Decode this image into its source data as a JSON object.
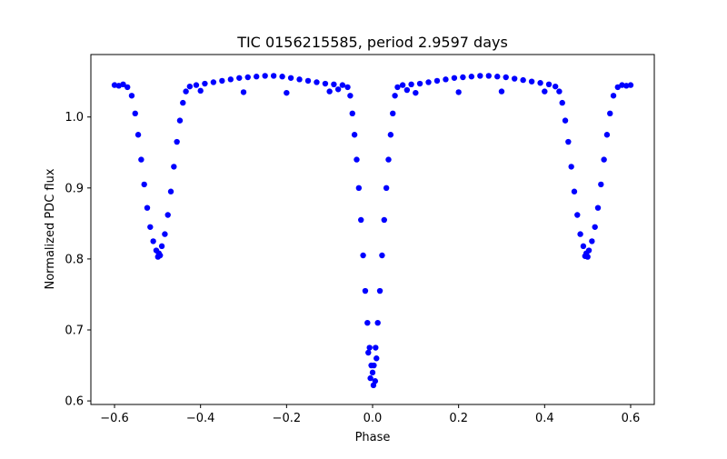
{
  "chart_data": {
    "type": "scatter",
    "title": "TIC 0156215585, period 2.9597 days",
    "xlabel": "Phase",
    "ylabel": "Normalized PDC flux",
    "xlim": [
      -0.655,
      0.655
    ],
    "ylim": [
      0.595,
      1.088
    ],
    "xticks": [
      -0.6,
      -0.4,
      -0.2,
      0.0,
      0.2,
      0.4,
      0.6
    ],
    "xtick_labels": [
      "−0.6",
      "−0.4",
      "−0.2",
      "0.0",
      "0.2",
      "0.4",
      "0.6"
    ],
    "yticks": [
      0.6,
      0.7,
      0.8,
      0.9,
      1.0
    ],
    "ytick_labels": [
      "0.6",
      "0.7",
      "0.8",
      "0.9",
      "1.0"
    ],
    "grid": false,
    "marker_color": "#0000ff",
    "series": [
      {
        "points": [
          [
            -0.6,
            1.045
          ],
          [
            -0.59,
            1.044
          ],
          [
            -0.58,
            1.046
          ],
          [
            -0.57,
            1.042
          ],
          [
            -0.56,
            1.03
          ],
          [
            -0.552,
            1.005
          ],
          [
            -0.545,
            0.975
          ],
          [
            -0.538,
            0.94
          ],
          [
            -0.531,
            0.905
          ],
          [
            -0.524,
            0.872
          ],
          [
            -0.517,
            0.845
          ],
          [
            -0.51,
            0.825
          ],
          [
            -0.503,
            0.812
          ],
          [
            -0.497,
            0.808
          ],
          [
            -0.49,
            0.818
          ],
          [
            -0.483,
            0.835
          ],
          [
            -0.476,
            0.862
          ],
          [
            -0.469,
            0.895
          ],
          [
            -0.462,
            0.93
          ],
          [
            -0.455,
            0.965
          ],
          [
            -0.448,
            0.995
          ],
          [
            -0.441,
            1.02
          ],
          [
            -0.434,
            1.036
          ],
          [
            -0.425,
            1.043
          ],
          [
            -0.41,
            1.045
          ],
          [
            -0.39,
            1.047
          ],
          [
            -0.37,
            1.049
          ],
          [
            -0.35,
            1.051
          ],
          [
            -0.33,
            1.053
          ],
          [
            -0.31,
            1.055
          ],
          [
            -0.29,
            1.056
          ],
          [
            -0.27,
            1.057
          ],
          [
            -0.25,
            1.058
          ],
          [
            -0.23,
            1.058
          ],
          [
            -0.21,
            1.057
          ],
          [
            -0.19,
            1.055
          ],
          [
            -0.17,
            1.053
          ],
          [
            -0.15,
            1.051
          ],
          [
            -0.13,
            1.049
          ],
          [
            -0.11,
            1.047
          ],
          [
            -0.09,
            1.046
          ],
          [
            -0.07,
            1.045
          ],
          [
            -0.058,
            1.042
          ],
          [
            -0.052,
            1.03
          ],
          [
            -0.047,
            1.005
          ],
          [
            -0.042,
            0.975
          ],
          [
            -0.037,
            0.94
          ],
          [
            -0.032,
            0.9
          ],
          [
            -0.027,
            0.855
          ],
          [
            -0.022,
            0.805
          ],
          [
            -0.017,
            0.755
          ],
          [
            -0.012,
            0.71
          ],
          [
            -0.007,
            0.675
          ],
          [
            -0.003,
            0.65
          ],
          [
            0.0,
            0.64
          ],
          [
            0.003,
            0.65
          ],
          [
            0.007,
            0.675
          ],
          [
            0.012,
            0.71
          ],
          [
            0.017,
            0.755
          ],
          [
            0.022,
            0.805
          ],
          [
            0.027,
            0.855
          ],
          [
            0.032,
            0.9
          ],
          [
            0.037,
            0.94
          ],
          [
            0.042,
            0.975
          ],
          [
            0.047,
            1.005
          ],
          [
            0.052,
            1.03
          ],
          [
            0.058,
            1.042
          ],
          [
            0.07,
            1.045
          ],
          [
            0.09,
            1.046
          ],
          [
            0.11,
            1.047
          ],
          [
            0.13,
            1.049
          ],
          [
            0.15,
            1.051
          ],
          [
            0.17,
            1.053
          ],
          [
            0.19,
            1.055
          ],
          [
            0.21,
            1.056
          ],
          [
            0.23,
            1.057
          ],
          [
            0.25,
            1.058
          ],
          [
            0.27,
            1.058
          ],
          [
            0.29,
            1.057
          ],
          [
            0.31,
            1.056
          ],
          [
            0.33,
            1.054
          ],
          [
            0.35,
            1.052
          ],
          [
            0.37,
            1.05
          ],
          [
            0.39,
            1.048
          ],
          [
            0.41,
            1.046
          ],
          [
            0.425,
            1.043
          ],
          [
            0.434,
            1.036
          ],
          [
            0.441,
            1.02
          ],
          [
            0.448,
            0.995
          ],
          [
            0.455,
            0.965
          ],
          [
            0.462,
            0.93
          ],
          [
            0.469,
            0.895
          ],
          [
            0.476,
            0.862
          ],
          [
            0.483,
            0.835
          ],
          [
            0.49,
            0.818
          ],
          [
            0.497,
            0.808
          ],
          [
            0.503,
            0.812
          ],
          [
            0.51,
            0.825
          ],
          [
            0.517,
            0.845
          ],
          [
            0.524,
            0.872
          ],
          [
            0.531,
            0.905
          ],
          [
            0.538,
            0.94
          ],
          [
            0.545,
            0.975
          ],
          [
            0.552,
            1.005
          ],
          [
            0.56,
            1.03
          ],
          [
            0.57,
            1.042
          ],
          [
            0.58,
            1.045
          ],
          [
            0.59,
            1.044
          ],
          [
            0.6,
            1.045
          ],
          [
            -0.01,
            0.668
          ],
          [
            -0.005,
            0.632
          ],
          [
            0.002,
            0.622
          ],
          [
            0.006,
            0.628
          ],
          [
            0.009,
            0.66
          ],
          [
            -0.499,
            0.803
          ],
          [
            -0.494,
            0.805
          ],
          [
            0.494,
            0.804
          ],
          [
            0.5,
            0.803
          ],
          [
            -0.3,
            1.035
          ],
          [
            -0.2,
            1.034
          ],
          [
            -0.1,
            1.036
          ],
          [
            0.1,
            1.034
          ],
          [
            0.2,
            1.035
          ],
          [
            0.3,
            1.036
          ],
          [
            -0.4,
            1.037
          ],
          [
            0.4,
            1.036
          ],
          [
            -0.08,
            1.039
          ],
          [
            0.08,
            1.038
          ]
        ]
      }
    ]
  }
}
